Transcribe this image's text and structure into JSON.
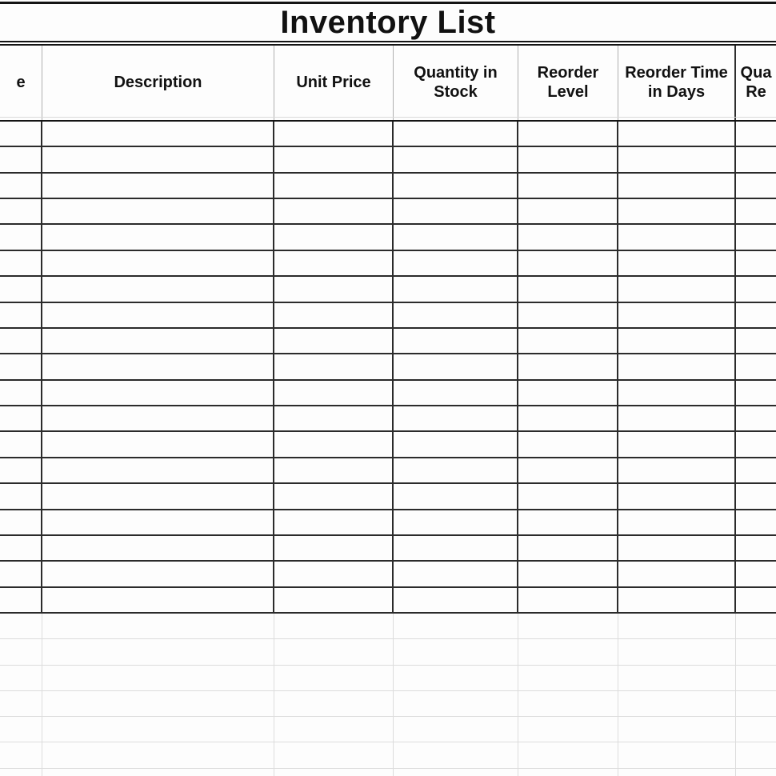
{
  "title": "Inventory List",
  "header": {
    "columns": [
      {
        "label": "e"
      },
      {
        "label": "Description"
      },
      {
        "label": "Unit Price"
      },
      {
        "label": "Quantity in Stock"
      },
      {
        "label": "Reorder Level"
      },
      {
        "label": "Reorder Time in Days"
      },
      {
        "label": "Qua\nRe"
      }
    ]
  },
  "body": {
    "row_count": 19,
    "column_count": 7,
    "cell_value": ""
  },
  "ghost_grid": {
    "row_count": 7,
    "column_count": 7,
    "cell_value": ""
  },
  "colors": {
    "table_border": "#2b2b2b",
    "title_rule": "#141414",
    "header_separator": "#b0b0b0",
    "faint_gridline": "#dcdcdc",
    "background": "#fdfdfd",
    "text": "#111111"
  }
}
